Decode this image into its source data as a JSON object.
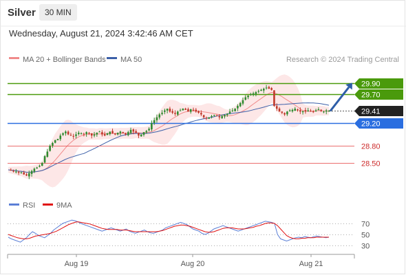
{
  "header": {
    "symbol": "Silver",
    "timeframe": "30 MIN",
    "datetime": "Wednesday, August 21, 2024 3:42:46 AM CET"
  },
  "legend": {
    "ma20_label": "MA 20 + Bollinger Bands",
    "ma50_label": "MA 50",
    "credit": "Research © 2024 Trading Central",
    "colors": {
      "ma20": "#f08a8a",
      "ma50": "#3b5fa8",
      "band": "#fde3e3"
    }
  },
  "rsi_legend": {
    "rsi_label": "RSI",
    "ma_label": "9MA",
    "colors": {
      "rsi": "#5b7fd6",
      "ma": "#e01010"
    }
  },
  "chart_data": [
    {
      "type": "candlestick",
      "title": "",
      "price_range": [
        28.2,
        30.15
      ],
      "x_ticks": [
        "Aug 19",
        "Aug 20",
        "Aug 21"
      ],
      "last_price": 29.41,
      "levels": [
        {
          "value": 29.9,
          "label": "29.90",
          "kind": "resistance",
          "color": "#4a9a0c"
        },
        {
          "value": 29.7,
          "label": "29.70",
          "kind": "resistance",
          "color": "#4a9a0c"
        },
        {
          "value": 29.41,
          "label": "29.41",
          "kind": "last",
          "color": "#222222"
        },
        {
          "value": 29.2,
          "label": "29.20",
          "kind": "pivot",
          "color": "#2a6ee0"
        },
        {
          "value": 28.8,
          "label": "28.80",
          "kind": "support",
          "color": "#e64a4a"
        },
        {
          "value": 28.5,
          "label": "28.50",
          "kind": "support",
          "color": "#e64a4a"
        }
      ],
      "projection": {
        "from": 29.41,
        "to": 29.9,
        "direction": "up",
        "color": "#2e5ea8"
      },
      "close_path": [
        28.38,
        28.37,
        28.36,
        28.35,
        28.33,
        28.34,
        28.3,
        28.28,
        28.32,
        28.36,
        28.4,
        28.42,
        28.45,
        28.5,
        28.62,
        28.7,
        28.8,
        28.85,
        28.9,
        28.92,
        28.98,
        29.02,
        29.05,
        29.0,
        28.98,
        28.96,
        29.0,
        29.03,
        29.02,
        29.0,
        29.04,
        29.02,
        28.98,
        29.0,
        29.03,
        29.05,
        29.0,
        28.98,
        29.02,
        29.05,
        29.02,
        29.0,
        29.03,
        29.05,
        29.02,
        29.0,
        29.04,
        29.08,
        29.05,
        29.03,
        28.98,
        29.0,
        29.04,
        29.06,
        29.1,
        29.2,
        29.25,
        29.3,
        29.35,
        29.38,
        29.42,
        29.45,
        29.4,
        29.38,
        29.36,
        29.4,
        29.42,
        29.45,
        29.43,
        29.4,
        29.44,
        29.42,
        29.4,
        29.38,
        29.35,
        29.3,
        29.28,
        29.3,
        29.32,
        29.34,
        29.33,
        29.3,
        29.32,
        29.34,
        29.36,
        29.4,
        29.42,
        29.45,
        29.5,
        29.55,
        29.6,
        29.65,
        29.68,
        29.7,
        29.72,
        29.74,
        29.76,
        29.78,
        29.8,
        29.82,
        29.8,
        29.78,
        29.5,
        29.45,
        29.4,
        29.38,
        29.35,
        29.4,
        29.42,
        29.43,
        29.45,
        29.42,
        29.4,
        29.41,
        29.4,
        29.42,
        29.4,
        29.39,
        29.42,
        29.44,
        29.41,
        29.4,
        29.42,
        29.41
      ]
    },
    {
      "type": "line",
      "title": "",
      "y_ticks": [
        70,
        50,
        30
      ],
      "ylim": [
        20,
        85
      ],
      "series": [
        {
          "name": "RSI",
          "values": [
            45,
            42,
            40,
            38,
            36,
            40,
            44,
            50,
            55,
            52,
            48,
            46,
            44,
            48,
            52,
            58,
            62,
            66,
            70,
            72,
            74,
            76,
            75,
            73,
            70,
            68,
            66,
            64,
            62,
            60,
            58,
            56,
            58,
            60,
            62,
            60,
            58,
            56,
            58,
            60,
            56,
            54,
            52,
            54,
            56,
            58,
            55,
            53,
            52,
            54,
            56,
            58,
            62,
            64,
            66,
            68,
            70,
            72,
            70,
            68,
            64,
            60,
            58,
            56,
            52,
            50,
            52,
            56,
            60,
            62,
            64,
            66,
            64,
            62,
            60,
            58,
            56,
            58,
            60,
            62,
            64,
            66,
            68,
            70,
            72,
            74,
            73,
            72,
            70,
            50,
            42,
            40,
            38,
            40,
            42,
            44,
            45,
            44,
            46,
            45,
            44,
            46,
            47,
            46,
            45,
            44,
            45
          ]
        },
        {
          "name": "9MA",
          "values": [
            50,
            48,
            46,
            44,
            43,
            42,
            42,
            43,
            45,
            47,
            48,
            49,
            50,
            51,
            52,
            54,
            56,
            59,
            62,
            65,
            68,
            70,
            72,
            73,
            72,
            71,
            70,
            69,
            67,
            65,
            63,
            61,
            60,
            59,
            59,
            59,
            59,
            58,
            58,
            58,
            57,
            56,
            55,
            55,
            55,
            55,
            55,
            55,
            55,
            55,
            56,
            57,
            59,
            61,
            63,
            65,
            66,
            67,
            67,
            66,
            65,
            63,
            61,
            59,
            57,
            55,
            54,
            54,
            55,
            57,
            59,
            61,
            62,
            62,
            62,
            61,
            60,
            60,
            60,
            61,
            62,
            63,
            65,
            66,
            68,
            70,
            71,
            71,
            70,
            66,
            60,
            54,
            48,
            45,
            43,
            42,
            42,
            43,
            43,
            44,
            44,
            44,
            45,
            45,
            45,
            45,
            45
          ]
        }
      ]
    }
  ]
}
